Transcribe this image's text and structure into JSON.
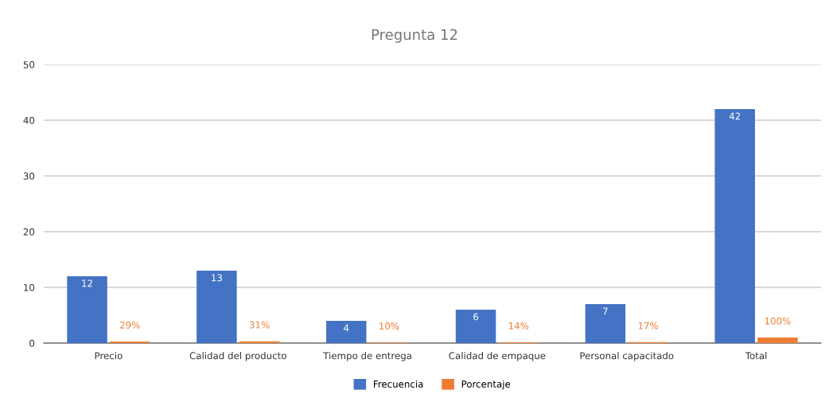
{
  "chart_data": {
    "type": "bar",
    "title": "Pregunta 12",
    "categories": [
      "Precio",
      "Calidad del producto",
      "Tiempo de entrega",
      "Calidad de empaque",
      "Personal capacitado",
      "Total"
    ],
    "series": [
      {
        "name": "Frecuencia",
        "color": "#4472c4",
        "values": [
          12,
          13,
          4,
          6,
          7,
          42
        ],
        "value_labels": [
          "12",
          "13",
          "4",
          "6",
          "7",
          "42"
        ]
      },
      {
        "name": "Porcentaje",
        "color": "#ed7d31",
        "values": [
          0.29,
          0.31,
          0.1,
          0.14,
          0.17,
          1.0
        ],
        "value_labels": [
          "29%",
          "31%",
          "10%",
          "14%",
          "17%",
          "100%"
        ]
      }
    ],
    "ylim": [
      0,
      50
    ],
    "yticks": [
      0,
      10,
      20,
      30,
      40,
      50
    ],
    "grid": "y",
    "legend": "bottom"
  }
}
